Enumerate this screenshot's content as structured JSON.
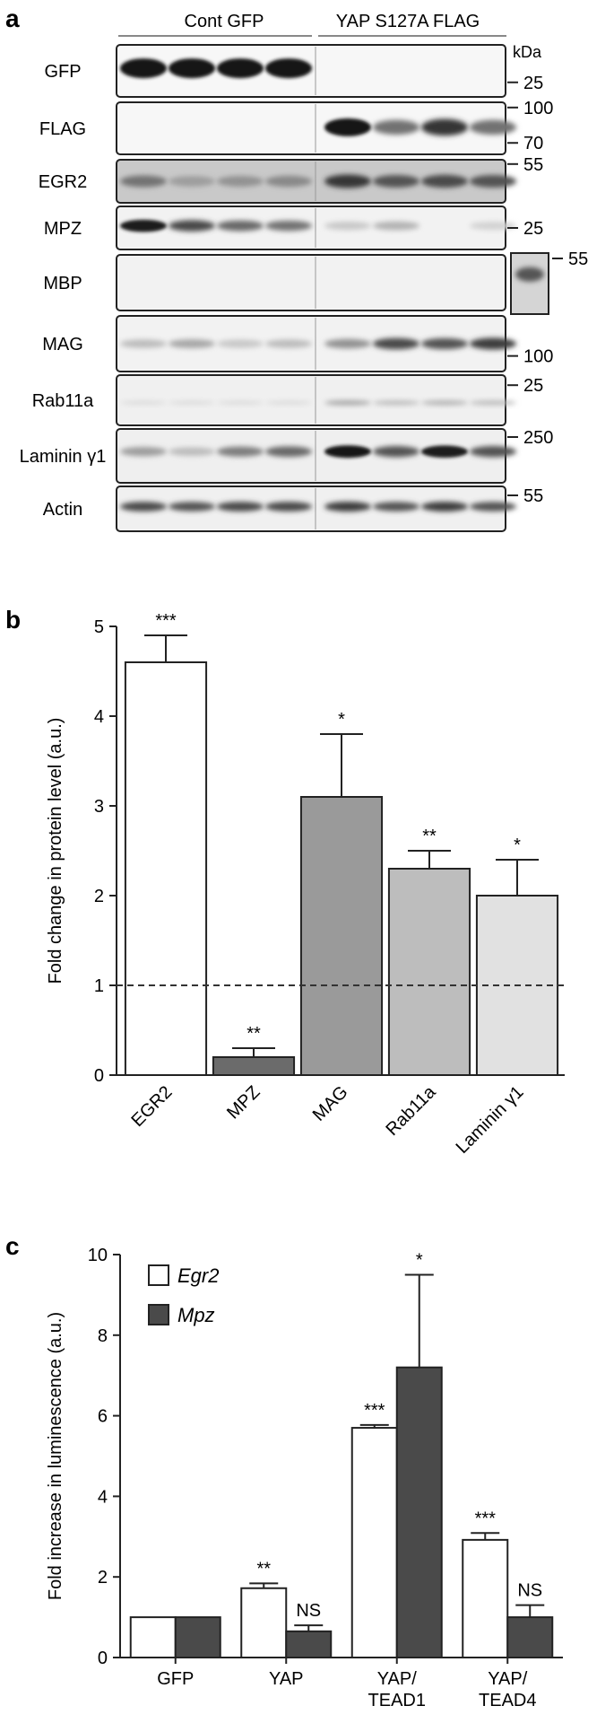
{
  "panel_a": {
    "label": "a",
    "group_left": "Cont GFP",
    "group_right": "YAP S127A FLAG",
    "kda_label": "kDa",
    "rows": [
      {
        "name": "GFP",
        "markers": [
          "25"
        ]
      },
      {
        "name": "FLAG",
        "markers": [
          "100",
          "70"
        ]
      },
      {
        "name": "EGR2",
        "markers": [
          "55"
        ]
      },
      {
        "name": "MPZ",
        "markers": [
          "25"
        ]
      },
      {
        "name": "MBP",
        "markers": [
          "55"
        ]
      },
      {
        "name": "MAG",
        "markers": [
          "100"
        ]
      },
      {
        "name": "Rab11a",
        "markers": [
          "25"
        ]
      },
      {
        "name": "Laminin γ1",
        "markers": [
          "250"
        ]
      },
      {
        "name": "Actin",
        "markers": [
          "55"
        ]
      }
    ]
  },
  "chart_data": [
    {
      "panel": "b",
      "type": "bar",
      "title": "",
      "xlabel": "",
      "ylabel": "Fold change in protein level (a.u.)",
      "ylim": [
        0,
        5
      ],
      "yticks": [
        "0",
        "1",
        "2",
        "3",
        "4",
        "5"
      ],
      "reference_line": 1,
      "categories": [
        "EGR2",
        "MPZ",
        "MAG",
        "Rab11a",
        "Laminin γ1"
      ],
      "values": [
        4.6,
        0.2,
        3.1,
        2.3,
        2.0
      ],
      "errors": [
        0.3,
        0.1,
        0.7,
        0.2,
        0.4
      ],
      "significance": [
        "***",
        "**",
        "*",
        "**",
        "*"
      ],
      "colors": [
        "#ffffff",
        "#6b6b6b",
        "#9a9a9a",
        "#bdbdbd",
        "#e1e1e1"
      ]
    },
    {
      "panel": "c",
      "type": "bar",
      "title": "",
      "xlabel": "",
      "ylabel": "Fold increase in luminescence (a.u.)",
      "ylim": [
        0,
        10
      ],
      "yticks": [
        "0",
        "2",
        "4",
        "6",
        "8",
        "10"
      ],
      "categories": [
        "GFP",
        "YAP",
        "YAP/\nTEAD1",
        "YAP/\nTEAD4"
      ],
      "legend_position": "top-left",
      "series": [
        {
          "name": "Egr2",
          "color": "#ffffff",
          "values": [
            1.0,
            1.72,
            5.7,
            2.92
          ],
          "errors": [
            0,
            0.12,
            0.07,
            0.17
          ],
          "significance": [
            "",
            "**",
            "***",
            "***"
          ]
        },
        {
          "name": "Mpz",
          "color": "#4a4a4a",
          "values": [
            1.0,
            0.65,
            7.2,
            1.0
          ],
          "errors": [
            0,
            0.15,
            2.3,
            0.3
          ],
          "significance": [
            "",
            "NS",
            "*",
            "NS"
          ]
        }
      ]
    }
  ]
}
